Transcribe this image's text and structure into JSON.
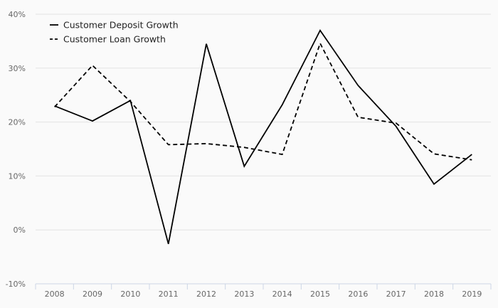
{
  "chart_data": {
    "type": "line",
    "categories": [
      "2008",
      "2009",
      "2010",
      "2011",
      "2012",
      "2013",
      "2014",
      "2015",
      "2016",
      "2017",
      "2018",
      "2019"
    ],
    "series": [
      {
        "name": "Customer Deposit Growth",
        "values": [
          23.0,
          20.2,
          24.0,
          -2.6,
          34.5,
          11.8,
          23.2,
          37.0,
          26.8,
          19.2,
          8.5,
          14.0
        ],
        "dash": "solid",
        "color": "#000000"
      },
      {
        "name": "Customer Loan Growth",
        "values": [
          22.8,
          30.5,
          23.8,
          15.8,
          16.0,
          15.3,
          14.0,
          34.6,
          20.9,
          19.8,
          14.1,
          13.0
        ],
        "dash": "dashed",
        "color": "#000000"
      }
    ],
    "y_ticks": [
      "-10%",
      "0%",
      "10%",
      "20%",
      "30%",
      "40%"
    ],
    "ylim": [
      -10,
      40
    ],
    "y_unit": "%",
    "grid": true,
    "legend_position": "top-left",
    "title": "",
    "xlabel": "",
    "ylabel": ""
  }
}
